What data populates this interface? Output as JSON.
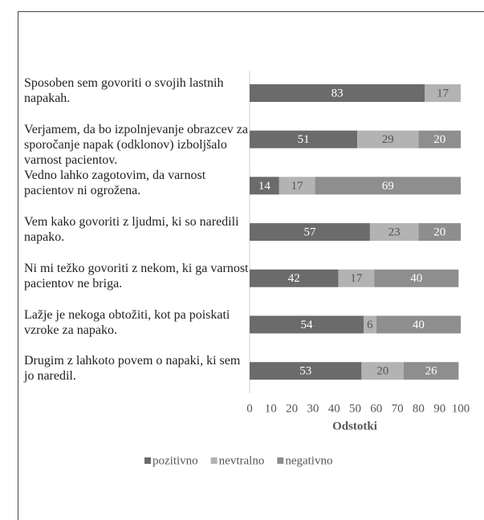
{
  "chart_data": {
    "type": "stacked-bar-horizontal",
    "categories": [
      "Sposoben sem govoriti o svojih lastnih napakah.",
      "Verjamem, da bo izpolnjevanje obrazcev za sporočanje napak (odklonov) izboljšalo varnost pacientov.",
      "Vedno lahko zagotovim, da varnost pacientov ni ogrožena.",
      "Vem kako govoriti z ljudmi, ki so naredili napako.",
      "Ni mi težko govoriti z nekom, ki ga varnost pacientov ne briga.",
      "Lažje je nekoga obtožiti, kot pa poiskati vzroke za napako.",
      "Drugim z lahkoto povem o napaki, ki sem jo naredil."
    ],
    "series": [
      {
        "name": "pozitivno",
        "color": "#6b6b6b",
        "values": [
          83,
          51,
          14,
          57,
          42,
          54,
          53
        ]
      },
      {
        "name": "nevtralno",
        "color": "#b3b3b3",
        "values": [
          17,
          29,
          17,
          23,
          17,
          6,
          20
        ]
      },
      {
        "name": "negativno",
        "color": "#8e8e8e",
        "values": [
          null,
          20,
          69,
          20,
          40,
          40,
          26
        ]
      }
    ],
    "xlim": [
      0,
      100
    ],
    "xticks": [
      0,
      10,
      20,
      30,
      40,
      50,
      60,
      70,
      80,
      90,
      100
    ],
    "xlabel": "Odstotki",
    "legend": "bottom"
  }
}
